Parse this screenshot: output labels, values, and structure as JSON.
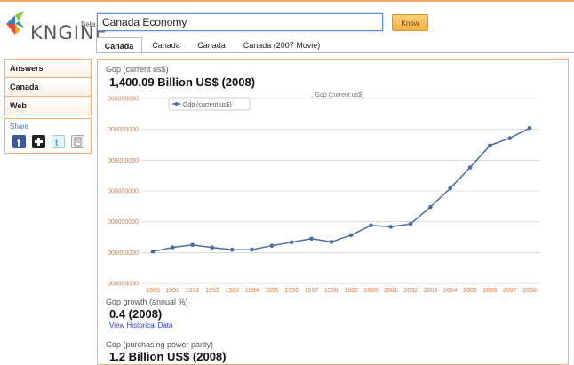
{
  "header": {
    "logo_text": "KNGINE",
    "beta": "Beta",
    "search_value": "Canada Economy",
    "know_label": "Know"
  },
  "tabs": [
    {
      "label": "Canada"
    },
    {
      "label": "Canada"
    },
    {
      "label": "Canada"
    },
    {
      "label": "Canada (2007 Movie)"
    }
  ],
  "sidebar": {
    "items": [
      {
        "label": "Answers"
      },
      {
        "label": "Canada"
      },
      {
        "label": "Web"
      }
    ],
    "share_label": "Share"
  },
  "main": {
    "gdp_label": "Gdp (current us$)",
    "gdp_value": "1,400.09 Billion US$ (2008)",
    "growth_label": "Gdp growth (annual %)",
    "growth_value": "0.4 (2008)",
    "historical_link": "View Historical Data",
    "ppp_label": "Gdp (purchasing power parity)",
    "ppp_value": "1.2 Billion US$ (2008)"
  },
  "chart_data": {
    "type": "line",
    "title": ", Gdp (current us$)",
    "legend": "Gdp (current us$)",
    "x": [
      "1989",
      "1990",
      "1991",
      "1992",
      "1993",
      "1994",
      "1995",
      "1996",
      "1997",
      "1998",
      "1999",
      "2000",
      "2001",
      "2002",
      "2003",
      "2004",
      "2005",
      "2006",
      "2007",
      "2008"
    ],
    "series": [
      {
        "name": "Gdp (current us$)",
        "values": [
          565,
          593,
          610,
          592,
          577,
          578,
          604,
          628,
          652,
          630,
          676,
          742,
          732,
          752,
          866,
          993,
          1134,
          1283,
          1332,
          1400
        ]
      }
    ],
    "y_tick_labels": [
      "000000000",
      "000000000",
      "000000000",
      "000000000",
      "000000000",
      "000000000",
      "000000000"
    ],
    "ylim": [
      350,
      1600
    ],
    "grid": true,
    "line_color": "#4a6fa5",
    "axis_label_color": "#e0783a"
  }
}
